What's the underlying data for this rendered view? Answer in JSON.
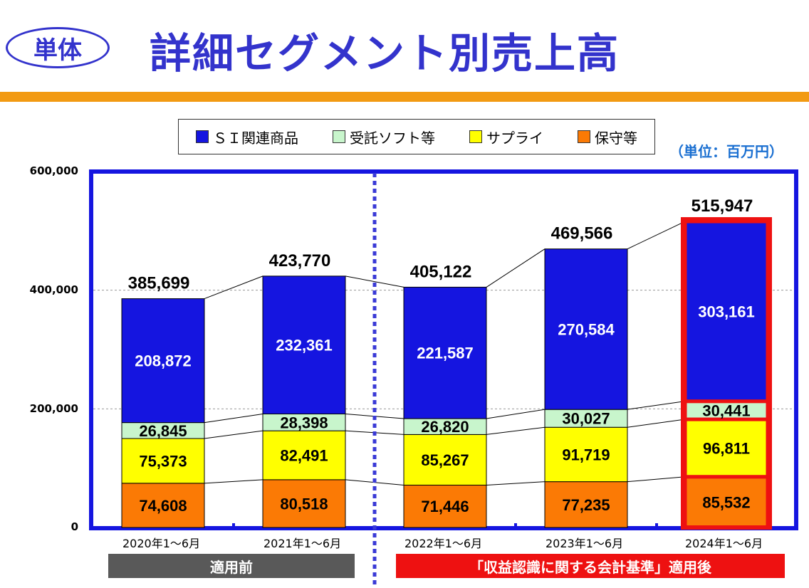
{
  "header": {
    "badge": "単体",
    "title": "詳細セグメント別売上高"
  },
  "legend": {
    "items": [
      {
        "label": "ＳＩ関連商品",
        "color": "#1515e0"
      },
      {
        "label": "受託ソフト等",
        "color": "#c8f5cc"
      },
      {
        "label": "サプライ",
        "color": "#ffff00"
      },
      {
        "label": "保守等",
        "color": "#fb7a05"
      }
    ]
  },
  "unit_label": "（単位：百万円）",
  "periods": {
    "before_label": "適用前",
    "after_label": "「収益認識に関する会計基準」適用後"
  },
  "chart_data": {
    "type": "bar",
    "stacked": true,
    "categories": [
      "2020年1～6月",
      "2021年1～6月",
      "2022年1～6月",
      "2023年1～6月",
      "2024年1～6月"
    ],
    "series": [
      {
        "name": "保守等",
        "color": "#fb7a05",
        "values": [
          74608,
          80518,
          71446,
          77235,
          85532
        ]
      },
      {
        "name": "サプライ",
        "color": "#ffff00",
        "values": [
          75373,
          82491,
          85267,
          91719,
          96811
        ]
      },
      {
        "name": "受託ソフト等",
        "color": "#c8f5cc",
        "values": [
          26845,
          28398,
          26820,
          30027,
          30441
        ]
      },
      {
        "name": "ＳＩ関連商品",
        "color": "#1515e0",
        "values": [
          208872,
          232361,
          221587,
          270584,
          303161
        ]
      }
    ],
    "totals": [
      385699,
      423770,
      405122,
      469566,
      515947
    ],
    "ylim": [
      0,
      600000
    ],
    "yticks": [
      "0",
      "200,000",
      "400,000",
      "600,000"
    ],
    "value_labels": [
      [
        "74,608",
        "80,518",
        "71,446",
        "77,235",
        "85,532"
      ],
      [
        "75,373",
        "82,491",
        "85,267",
        "91,719",
        "96,811"
      ],
      [
        "26,845",
        "28,398",
        "26,820",
        "30,027",
        "30,441"
      ],
      [
        "208,872",
        "232,361",
        "221,587",
        "270,584",
        "303,161"
      ]
    ],
    "total_labels": [
      "385,699",
      "423,770",
      "405,122",
      "469,566",
      "515,947"
    ],
    "highlight_index": 4,
    "grid": true
  }
}
